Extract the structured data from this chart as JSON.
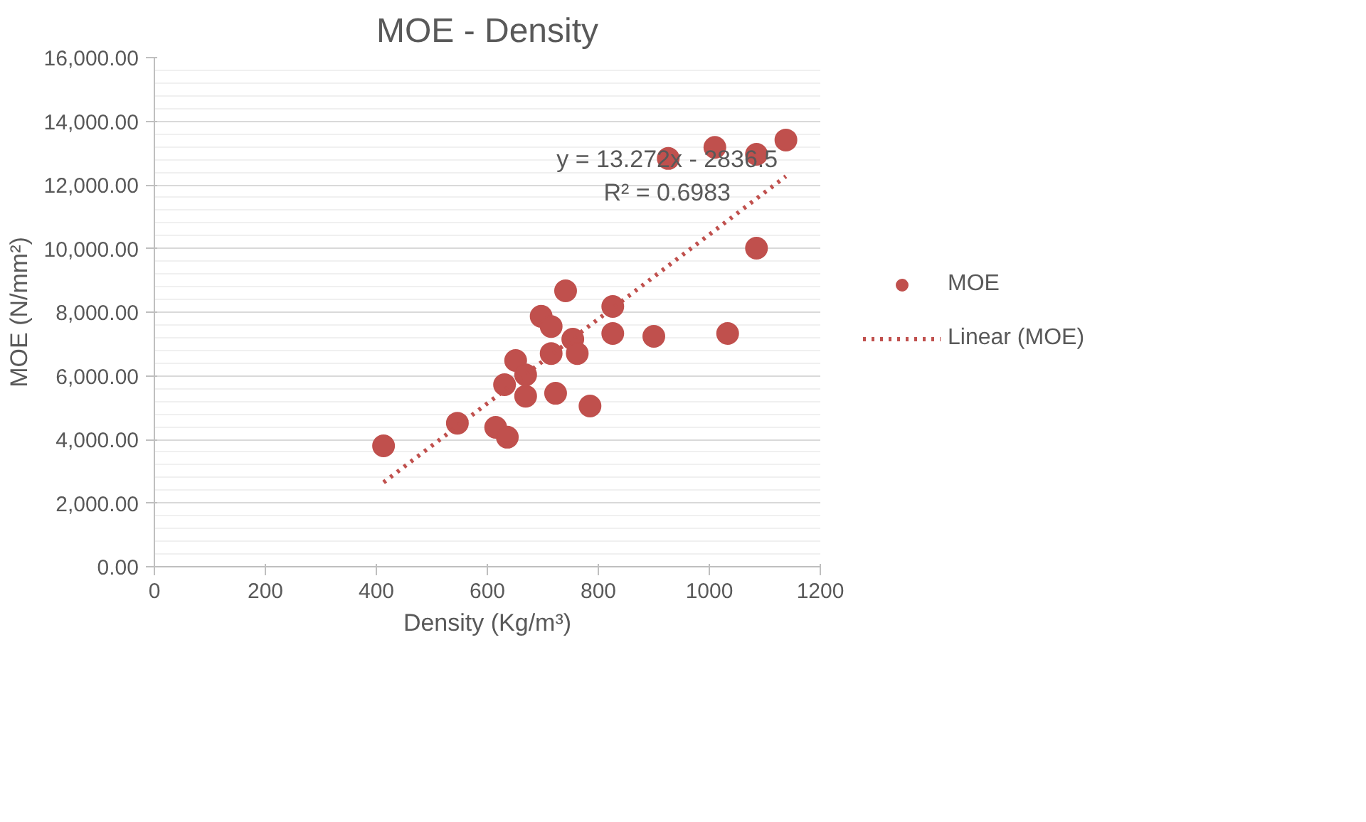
{
  "chart_data": {
    "type": "scatter",
    "title": "MOE - Density",
    "xlabel": "Density (Kg/m³)",
    "ylabel": "MOE (N/mm²)",
    "xlim": [
      0,
      1200
    ],
    "xticks": [
      0,
      200,
      400,
      600,
      800,
      1000,
      1200
    ],
    "ylim": [
      0,
      16000
    ],
    "yticks": [
      {
        "value": 0,
        "label": "0.00"
      },
      {
        "value": 2000,
        "label": "2,000.00"
      },
      {
        "value": 4000,
        "label": "4,000.00"
      },
      {
        "value": 6000,
        "label": "6,000.00"
      },
      {
        "value": 8000,
        "label": "8,000.00"
      },
      {
        "value": 10000,
        "label": "10,000.00"
      },
      {
        "value": 12000,
        "label": "12,000.00"
      },
      {
        "value": 14000,
        "label": "14,000.00"
      },
      {
        "value": 16000,
        "label": "16,000.00"
      }
    ],
    "grid": "y",
    "legend": "right",
    "series": [
      {
        "name": "MOE",
        "marker": "circle",
        "color": "#c0504d",
        "x": [
          413,
          546,
          615,
          636,
          631,
          651,
          669,
          669,
          697,
          715,
          715,
          723,
          741,
          754,
          762,
          785,
          826,
          826,
          900,
          926,
          1010,
          1033,
          1085,
          1085,
          1138
        ],
        "values": [
          3800,
          4510,
          4380,
          4070,
          5720,
          6480,
          6030,
          5360,
          7870,
          7550,
          6700,
          5450,
          8670,
          7150,
          6700,
          5050,
          8180,
          7330,
          7240,
          12830,
          13180,
          7330,
          12960,
          10010,
          13410
        ]
      },
      {
        "name": "Linear (MOE)",
        "type": "line",
        "color": "#c0504d",
        "line_style": "dotted",
        "x": [
          413,
          1138
        ],
        "values": [
          2650,
          12270
        ]
      }
    ],
    "annotations": [
      "y = 13.272x - 2836.5",
      "R² = 0.6983"
    ]
  }
}
